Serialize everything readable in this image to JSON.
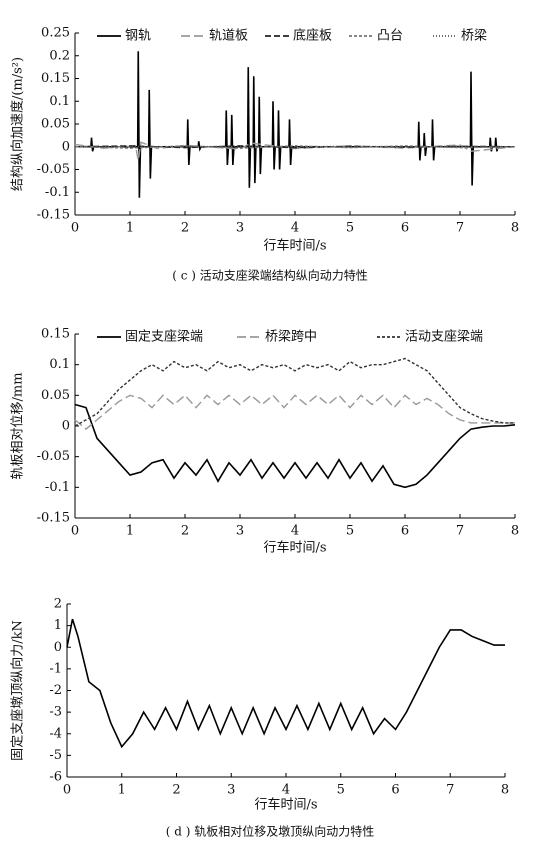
{
  "chart_data": [
    {
      "type": "line",
      "ylabel": "结构纵向加速度/(m/s²)",
      "xlabel": "行车时间/s",
      "xlim": [
        0,
        8
      ],
      "xticks": [
        0,
        1,
        2,
        3,
        4,
        5,
        6,
        7,
        8
      ],
      "ylim": [
        -0.15,
        0.25
      ],
      "yticks": [
        -0.15,
        -0.1,
        -0.05,
        0,
        0.05,
        0.1,
        0.15,
        0.2,
        0.25
      ],
      "legend": "top",
      "series": [
        {
          "name": "钢轨",
          "color": "#000000",
          "dash": "solid",
          "x": [
            0,
            0.29,
            0.3,
            0.32,
            0.34,
            1.14,
            1.15,
            1.17,
            1.19,
            1.34,
            1.35,
            1.37,
            1.39,
            2.04,
            2.05,
            2.07,
            2.09,
            2.24,
            2.25,
            2.27,
            2.29,
            2.74,
            2.75,
            2.77,
            2.79,
            2.84,
            2.85,
            2.87,
            2.89,
            3.14,
            3.15,
            3.17,
            3.19,
            3.24,
            3.25,
            3.27,
            3.29,
            3.34,
            3.35,
            3.37,
            3.39,
            3.59,
            3.6,
            3.62,
            3.64,
            3.69,
            3.7,
            3.72,
            3.74,
            3.89,
            3.9,
            3.92,
            3.94,
            6.24,
            6.25,
            6.27,
            6.29,
            6.34,
            6.35,
            6.37,
            6.39,
            6.49,
            6.5,
            6.52,
            6.54,
            7.19,
            7.2,
            7.22,
            7.24,
            7.54,
            7.55,
            7.57,
            7.59,
            7.64,
            7.65,
            7.67,
            7.69,
            8
          ],
          "values": [
            0,
            0,
            0.02,
            -0.01,
            0,
            0,
            0.21,
            -0.112,
            0,
            0,
            0.125,
            -0.07,
            0,
            0,
            0.06,
            -0.04,
            0,
            0,
            0.012,
            -0.005,
            0,
            0,
            0.08,
            -0.04,
            0,
            0,
            0.07,
            -0.04,
            0,
            0,
            0.175,
            -0.09,
            0,
            0,
            0.155,
            -0.08,
            0,
            0,
            0.11,
            -0.06,
            0,
            0,
            0.1,
            -0.05,
            0,
            0,
            0.08,
            -0.05,
            0,
            0,
            0.06,
            -0.04,
            0,
            0,
            0.055,
            -0.03,
            0,
            0,
            0.03,
            -0.02,
            0,
            0,
            0.06,
            -0.03,
            0,
            0,
            0.165,
            -0.085,
            0,
            0,
            0.02,
            -0.01,
            0,
            0,
            0.02,
            -0.01,
            0,
            0
          ]
        },
        {
          "name": "轨道板",
          "color": "#999999",
          "dash": "longdash",
          "x": [
            0,
            0.5,
            1.1,
            1.15,
            1.2,
            1.5,
            2,
            3,
            3.2,
            4,
            5,
            6,
            7,
            7.2,
            8
          ],
          "values": [
            0.005,
            -0.003,
            0.002,
            -0.03,
            0.01,
            -0.004,
            0.003,
            -0.005,
            0.008,
            -0.004,
            0.002,
            -0.003,
            0.004,
            -0.01,
            0
          ]
        },
        {
          "name": "底座板",
          "color": "#222222",
          "dash": "dash",
          "x": [
            0,
            1,
            2,
            3,
            4,
            5,
            6,
            7,
            8
          ],
          "values": [
            0,
            0.002,
            -0.002,
            0.002,
            -0.002,
            0.001,
            -0.001,
            0.001,
            0
          ]
        },
        {
          "name": "凸台",
          "color": "#777777",
          "dash": "shortdash",
          "x": [
            0,
            1,
            2,
            3,
            4,
            5,
            6,
            7,
            8
          ],
          "values": [
            0,
            -0.003,
            0.002,
            -0.003,
            0.002,
            -0.002,
            0.002,
            -0.002,
            0
          ]
        },
        {
          "name": "桥梁",
          "color": "#555555",
          "dash": "dot",
          "x": [
            0,
            1,
            2,
            3,
            4,
            5,
            6,
            7,
            8
          ],
          "values": [
            0,
            0.001,
            0,
            0.001,
            0,
            0.001,
            0,
            0.001,
            0
          ]
        }
      ]
    },
    {
      "type": "line",
      "ylabel": "轨板相对位移/mm",
      "xlabel": "行车时间/s",
      "xlim": [
        0,
        8
      ],
      "xticks": [
        0,
        1,
        2,
        3,
        4,
        5,
        6,
        7,
        8
      ],
      "ylim": [
        -0.15,
        0.15
      ],
      "yticks": [
        -0.15,
        -0.1,
        -0.05,
        0,
        0.05,
        0.1,
        0.15
      ],
      "legend": "top",
      "x": [
        0,
        0.2,
        0.4,
        0.6,
        0.8,
        1,
        1.2,
        1.4,
        1.6,
        1.8,
        2,
        2.2,
        2.4,
        2.6,
        2.8,
        3,
        3.2,
        3.4,
        3.6,
        3.8,
        4,
        4.2,
        4.4,
        4.6,
        4.8,
        5,
        5.2,
        5.4,
        5.6,
        5.8,
        6,
        6.2,
        6.4,
        6.6,
        6.8,
        7,
        7.2,
        7.4,
        7.6,
        7.8,
        8
      ],
      "series": [
        {
          "name": "固定支座梁端",
          "color": "#000000",
          "dash": "solid",
          "values": [
            0.035,
            0.03,
            -0.02,
            -0.04,
            -0.06,
            -0.08,
            -0.075,
            -0.06,
            -0.055,
            -0.085,
            -0.06,
            -0.08,
            -0.055,
            -0.09,
            -0.06,
            -0.08,
            -0.055,
            -0.085,
            -0.06,
            -0.085,
            -0.06,
            -0.085,
            -0.06,
            -0.085,
            -0.055,
            -0.085,
            -0.06,
            -0.09,
            -0.065,
            -0.095,
            -0.1,
            -0.095,
            -0.08,
            -0.06,
            -0.04,
            -0.02,
            -0.005,
            -0.002,
            0,
            0,
            0.002
          ]
        },
        {
          "name": "桥梁跨中",
          "color": "#999999",
          "dash": "longdash",
          "values": [
            0.01,
            -0.005,
            0.01,
            0.025,
            0.04,
            0.05,
            0.045,
            0.03,
            0.05,
            0.035,
            0.05,
            0.03,
            0.05,
            0.035,
            0.05,
            0.035,
            0.05,
            0.035,
            0.05,
            0.03,
            0.05,
            0.035,
            0.05,
            0.035,
            0.05,
            0.03,
            0.05,
            0.035,
            0.05,
            0.03,
            0.05,
            0.035,
            0.045,
            0.035,
            0.02,
            0.01,
            0.005,
            0.005,
            0.005,
            0.005,
            0.005
          ]
        },
        {
          "name": "活动支座梁端",
          "color": "#333333",
          "dash": "shortdash",
          "values": [
            0,
            0.01,
            0.02,
            0.04,
            0.06,
            0.075,
            0.09,
            0.1,
            0.09,
            0.105,
            0.095,
            0.1,
            0.09,
            0.105,
            0.095,
            0.1,
            0.09,
            0.1,
            0.095,
            0.1,
            0.09,
            0.1,
            0.095,
            0.1,
            0.09,
            0.105,
            0.095,
            0.1,
            0.1,
            0.105,
            0.11,
            0.1,
            0.09,
            0.07,
            0.05,
            0.03,
            0.02,
            0.012,
            0.008,
            0.005,
            0.005
          ]
        }
      ]
    },
    {
      "type": "line",
      "ylabel": "固定支座墩顶纵向力/kN",
      "xlabel": "行车时间/s",
      "xlim": [
        0,
        8
      ],
      "xticks": [
        0,
        1,
        2,
        3,
        4,
        5,
        6,
        7,
        8
      ],
      "ylim": [
        -6,
        2
      ],
      "yticks": [
        -6,
        -5,
        -4,
        -3,
        -2,
        -1,
        0,
        1,
        2
      ],
      "x": [
        0,
        0.1,
        0.2,
        0.4,
        0.6,
        0.8,
        1,
        1.2,
        1.4,
        1.6,
        1.8,
        2,
        2.2,
        2.4,
        2.6,
        2.8,
        3,
        3.2,
        3.4,
        3.6,
        3.8,
        4,
        4.2,
        4.4,
        4.6,
        4.8,
        5,
        5.2,
        5.4,
        5.6,
        5.8,
        6,
        6.2,
        6.4,
        6.6,
        6.8,
        7,
        7.2,
        7.4,
        7.6,
        7.8,
        8
      ],
      "series": [
        {
          "color": "#000000",
          "dash": "solid",
          "values": [
            0,
            1.3,
            0.5,
            -1.6,
            -2,
            -3.5,
            -4.6,
            -4,
            -3,
            -3.8,
            -2.8,
            -3.8,
            -2.5,
            -3.8,
            -2.7,
            -4,
            -2.8,
            -4,
            -2.8,
            -4,
            -2.8,
            -3.8,
            -2.7,
            -3.8,
            -2.6,
            -3.8,
            -2.6,
            -3.8,
            -2.8,
            -4,
            -3.3,
            -3.8,
            -3,
            -2,
            -1,
            0,
            0.8,
            0.8,
            0.5,
            0.3,
            0.1,
            0.1
          ]
        }
      ]
    }
  ],
  "captions": [
    "( c ) 活动支座梁端结构纵向动力特性",
    "( d ) 轨板相对位移及墩顶纵向动力特性"
  ]
}
